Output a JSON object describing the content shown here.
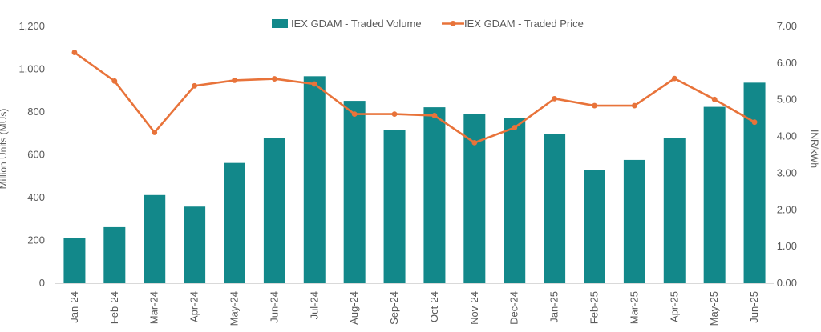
{
  "chart_data": {
    "type": "bar+line",
    "title": "",
    "categories": [
      "Jan-24",
      "Feb-24",
      "Mar-24",
      "Apr-24",
      "May-24",
      "Jun-24",
      "Jul-24",
      "Aug-24",
      "Sep-24",
      "Oct-24",
      "Nov-24",
      "Dec-24",
      "Jan-25",
      "Feb-25",
      "Mar-25",
      "Apr-25",
      "May-25",
      "Jun-25"
    ],
    "series": [
      {
        "name": "IEX GDAM - Traded Volume",
        "type": "bar",
        "axis": "left",
        "color": "#12888A",
        "values": [
          210,
          262,
          412,
          358,
          562,
          677,
          967,
          852,
          717,
          822,
          789,
          772,
          696,
          528,
          576,
          680,
          824,
          937
        ]
      },
      {
        "name": "IEX GDAM - Traded Price",
        "type": "line",
        "axis": "right",
        "color": "#E8733A",
        "values": [
          6.29,
          5.51,
          4.11,
          5.38,
          5.53,
          5.57,
          5.43,
          4.61,
          4.61,
          4.57,
          3.83,
          4.24,
          5.03,
          4.84,
          4.84,
          5.58,
          5.01,
          4.39
        ]
      }
    ],
    "y_left": {
      "label": "Million Units (MUs)",
      "min": 0,
      "max": 1200,
      "ticks": [
        "0",
        "200",
        "400",
        "600",
        "800",
        "1,000",
        "1,200"
      ]
    },
    "y_right": {
      "label": "INR/kWh",
      "min": 0,
      "max": 7,
      "ticks": [
        "0.00",
        "1.00",
        "2.00",
        "3.00",
        "4.00",
        "5.00",
        "6.00",
        "7.00"
      ]
    },
    "legend_position": "top-center",
    "grid": false
  }
}
